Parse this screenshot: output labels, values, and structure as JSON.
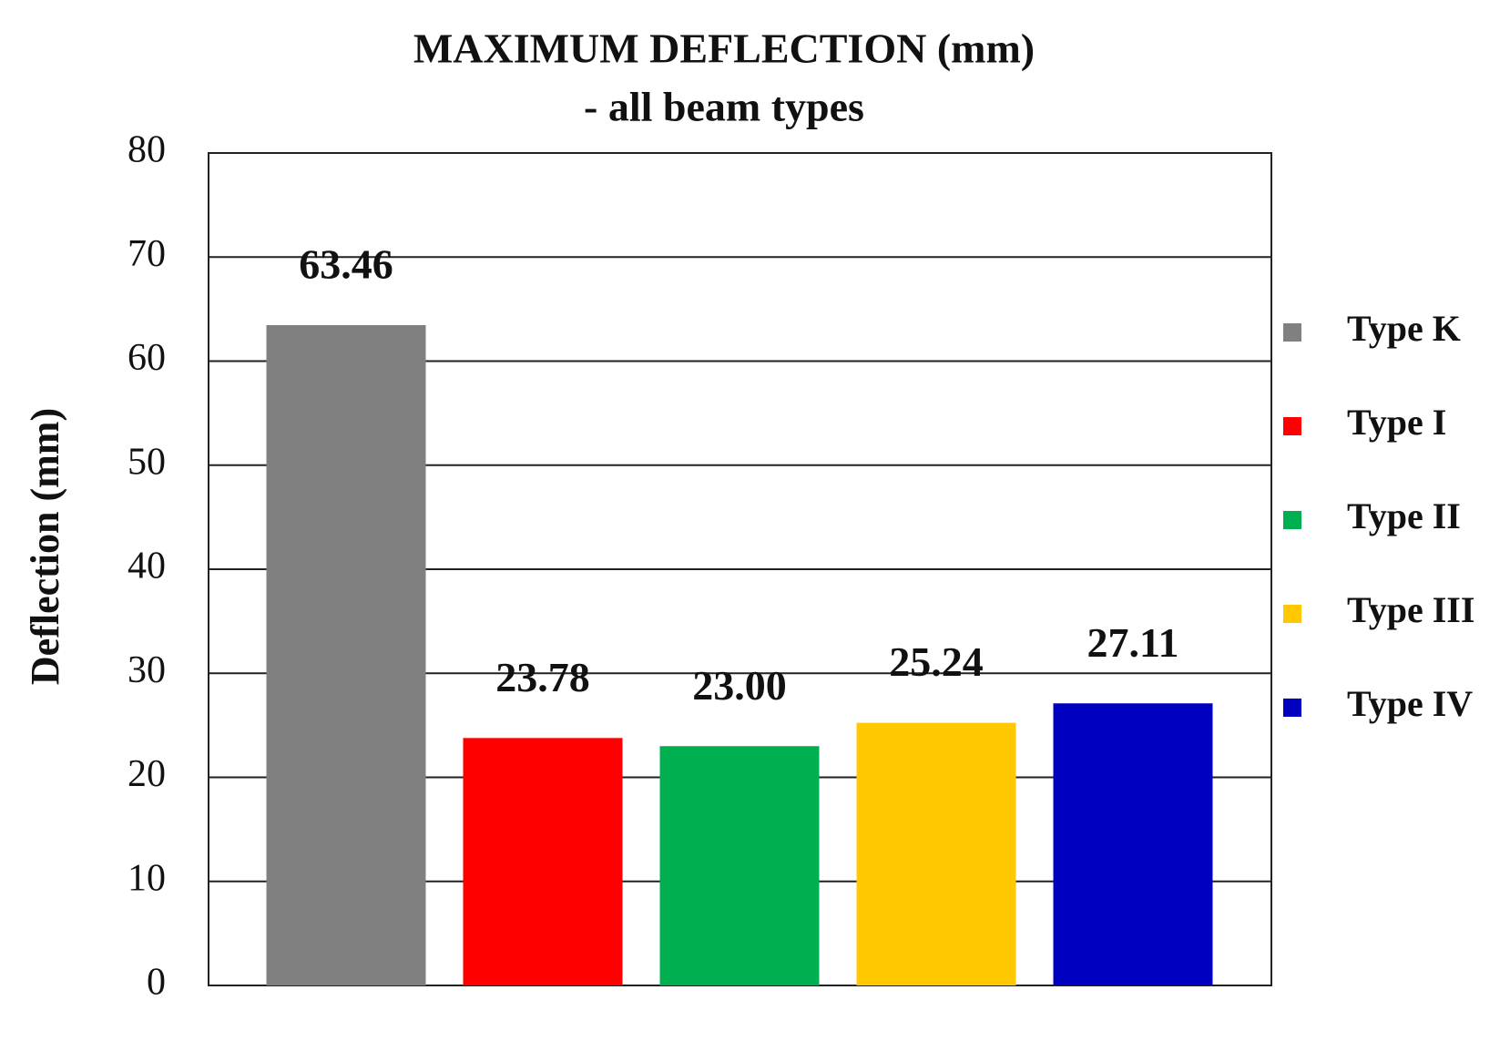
{
  "chart_data": {
    "type": "bar",
    "title": "MAXIMUM DEFLECTION (mm)",
    "subtitle": "-  all beam types",
    "y_label": "Deflection (mm)",
    "categories": [
      null
    ],
    "series": [
      {
        "name": "Type K",
        "color": "#808080",
        "values": [
          63.46
        ]
      },
      {
        "name": "Type I",
        "color": "#ff0000",
        "values": [
          23.78
        ]
      },
      {
        "name": "Type II",
        "color": "#00b050",
        "values": [
          23.0
        ],
        "value_labels": [
          "23.00"
        ]
      },
      {
        "name": "Type III",
        "color": "#ffc800",
        "values": [
          25.24
        ]
      },
      {
        "name": "Type IV",
        "color": "#0000c0",
        "values": [
          27.11
        ]
      }
    ],
    "ylim": [
      0,
      80
    ],
    "yticks": [
      0,
      10,
      20,
      30,
      40,
      50,
      60,
      70,
      80
    ],
    "grid": true,
    "legend": "right"
  }
}
